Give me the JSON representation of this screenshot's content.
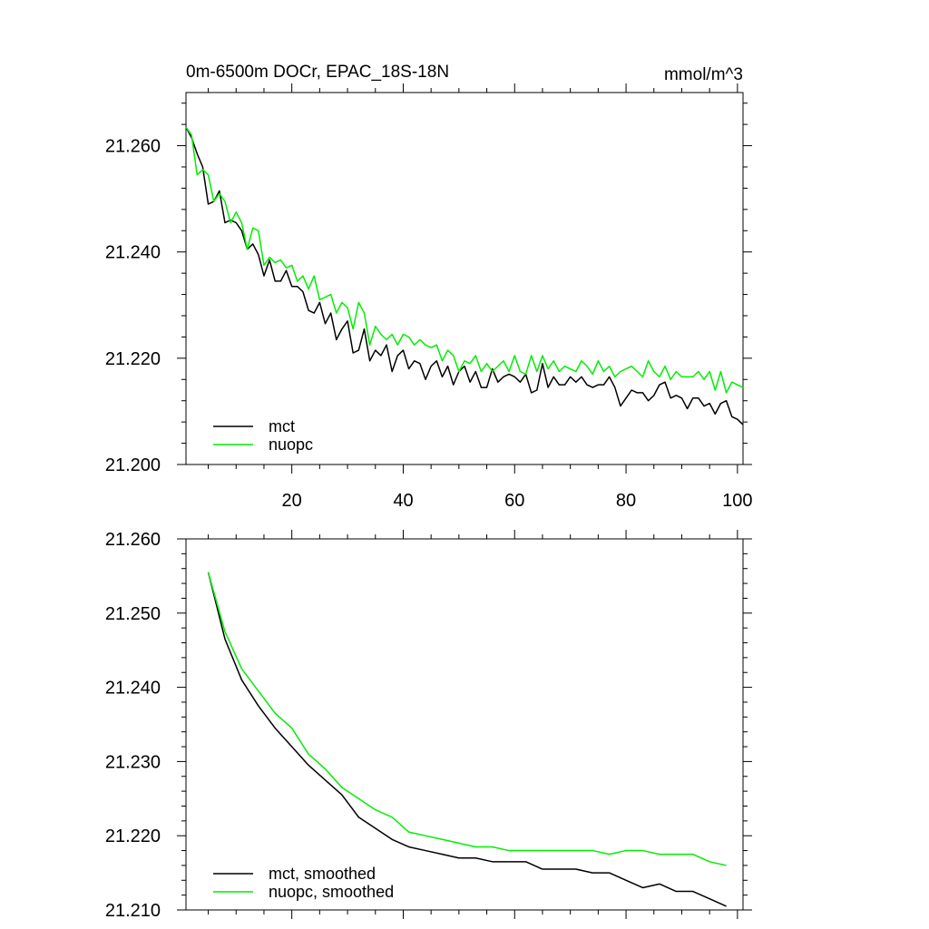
{
  "chart_data": [
    {
      "type": "line",
      "title": "0m-6500m DOCr, EPAC_18S-18N",
      "units": "mmol/m^3",
      "xlim": [
        1,
        101
      ],
      "ylim": [
        21.2,
        21.27
      ],
      "xticks": [
        20,
        40,
        60,
        80,
        100
      ],
      "yticks": [
        21.2,
        21.22,
        21.24,
        21.26
      ],
      "ytick_labels": [
        "21.200",
        "21.220",
        "21.240",
        "21.260"
      ],
      "xtick_labels": [
        "20",
        "40",
        "60",
        "80",
        "100"
      ],
      "legend_location": "bottom-left",
      "series": [
        {
          "name": "mct",
          "color": "#000000",
          "x": [
            1,
            2,
            3,
            4,
            5,
            6,
            7,
            8,
            9,
            10,
            11,
            12,
            13,
            14,
            15,
            16,
            17,
            18,
            19,
            20,
            21,
            22,
            23,
            24,
            25,
            26,
            27,
            28,
            29,
            30,
            31,
            32,
            33,
            34,
            35,
            36,
            37,
            38,
            39,
            40,
            41,
            42,
            43,
            44,
            45,
            46,
            47,
            48,
            49,
            50,
            51,
            52,
            53,
            54,
            55,
            56,
            57,
            58,
            59,
            60,
            61,
            62,
            63,
            64,
            65,
            66,
            67,
            68,
            69,
            70,
            71,
            72,
            73,
            74,
            75,
            76,
            77,
            78,
            79,
            80,
            81,
            82,
            83,
            84,
            85,
            86,
            87,
            88,
            89,
            90,
            91,
            92,
            93,
            94,
            95,
            96,
            97,
            98,
            99,
            100,
            101
          ],
          "values": [
            21.2635,
            21.2615,
            21.2585,
            21.256,
            21.249,
            21.2495,
            21.2515,
            21.2455,
            21.246,
            21.2455,
            21.244,
            21.2405,
            21.2415,
            21.2395,
            21.2355,
            21.2385,
            21.2345,
            21.2345,
            21.2365,
            21.2335,
            21.2335,
            21.2325,
            21.229,
            21.2285,
            21.2305,
            21.2265,
            21.2285,
            21.2235,
            21.2255,
            21.227,
            21.221,
            21.2215,
            21.2255,
            21.2195,
            21.2215,
            21.2205,
            21.2225,
            21.2175,
            21.2205,
            21.2215,
            21.218,
            21.2195,
            21.219,
            21.216,
            21.2185,
            21.2195,
            21.2165,
            21.2185,
            21.215,
            21.2175,
            21.2185,
            21.2155,
            21.2175,
            21.2145,
            21.2145,
            21.218,
            21.2155,
            21.2165,
            21.217,
            21.2165,
            21.2155,
            21.217,
            21.2135,
            21.214,
            21.219,
            21.2145,
            21.2165,
            21.215,
            21.215,
            21.2165,
            21.2155,
            21.2165,
            21.215,
            21.2145,
            21.215,
            21.215,
            21.2165,
            21.2145,
            21.211,
            21.2125,
            21.214,
            21.2135,
            21.2135,
            21.212,
            21.213,
            21.215,
            21.2155,
            21.2125,
            21.213,
            21.2125,
            21.2105,
            21.2125,
            21.2125,
            21.211,
            21.2115,
            21.2095,
            21.2115,
            21.212,
            21.209,
            21.2085,
            21.2075
          ]
        },
        {
          "name": "nuopc",
          "color": "#00ee00",
          "x": [
            1,
            2,
            3,
            4,
            5,
            6,
            7,
            8,
            9,
            10,
            11,
            12,
            13,
            14,
            15,
            16,
            17,
            18,
            19,
            20,
            21,
            22,
            23,
            24,
            25,
            26,
            27,
            28,
            29,
            30,
            31,
            32,
            33,
            34,
            35,
            36,
            37,
            38,
            39,
            40,
            41,
            42,
            43,
            44,
            45,
            46,
            47,
            48,
            49,
            50,
            51,
            52,
            53,
            54,
            55,
            56,
            57,
            58,
            59,
            60,
            61,
            62,
            63,
            64,
            65,
            66,
            67,
            68,
            69,
            70,
            71,
            72,
            73,
            74,
            75,
            76,
            77,
            78,
            79,
            80,
            81,
            82,
            83,
            84,
            85,
            86,
            87,
            88,
            89,
            90,
            91,
            92,
            93,
            94,
            95,
            96,
            97,
            98,
            99,
            100,
            101
          ],
          "values": [
            21.2635,
            21.262,
            21.2545,
            21.2555,
            21.2545,
            21.2495,
            21.251,
            21.2495,
            21.2455,
            21.2475,
            21.2455,
            21.2405,
            21.2445,
            21.244,
            21.2375,
            21.239,
            21.238,
            21.2385,
            21.237,
            21.2375,
            21.2345,
            21.2355,
            21.233,
            21.2355,
            21.231,
            21.2315,
            21.232,
            21.2285,
            21.2305,
            21.2295,
            21.2255,
            21.2305,
            21.2285,
            21.2225,
            21.226,
            21.2245,
            21.2235,
            21.2245,
            21.2225,
            21.2245,
            21.224,
            21.2225,
            21.2235,
            21.2225,
            21.222,
            21.2225,
            21.2195,
            21.2215,
            21.2205,
            21.2175,
            21.2195,
            21.219,
            21.2205,
            21.2175,
            21.219,
            21.2175,
            21.2185,
            21.2195,
            21.2175,
            21.2205,
            21.2175,
            21.217,
            21.2205,
            21.2175,
            21.2205,
            21.218,
            21.2195,
            21.2175,
            21.2185,
            21.218,
            21.2175,
            21.2195,
            21.2185,
            21.217,
            21.2195,
            21.2175,
            21.2185,
            21.2165,
            21.2175,
            21.218,
            21.2185,
            21.2175,
            21.2165,
            21.2195,
            21.2175,
            21.2165,
            21.2185,
            21.216,
            21.2175,
            21.2165,
            21.2165,
            21.2165,
            21.2175,
            21.216,
            21.2175,
            21.214,
            21.2175,
            21.2135,
            21.2155,
            21.215,
            21.2145
          ]
        }
      ]
    },
    {
      "type": "line",
      "title": "",
      "xlim": [
        1,
        101
      ],
      "ylim": [
        21.21,
        21.26
      ],
      "xticks": [
        20,
        40,
        60,
        80,
        100
      ],
      "yticks": [
        21.21,
        21.22,
        21.23,
        21.24,
        21.25,
        21.26
      ],
      "ytick_labels": [
        "21.210",
        "21.220",
        "21.230",
        "21.240",
        "21.250",
        "21.260"
      ],
      "legend_location": "bottom-left",
      "series": [
        {
          "name": "mct, smoothed",
          "color": "#000000",
          "x": [
            5,
            8,
            11,
            14,
            17,
            20,
            23,
            26,
            29,
            32,
            35,
            38,
            41,
            44,
            47,
            50,
            53,
            56,
            59,
            62,
            65,
            68,
            71,
            74,
            77,
            80,
            83,
            86,
            89,
            92,
            95,
            98
          ],
          "values": [
            21.2555,
            21.2465,
            21.241,
            21.2375,
            21.2345,
            21.232,
            21.2295,
            21.2275,
            21.2255,
            21.2225,
            21.221,
            21.2195,
            21.2185,
            21.218,
            21.2175,
            21.217,
            21.217,
            21.2165,
            21.2165,
            21.2165,
            21.2155,
            21.2155,
            21.2155,
            21.215,
            21.215,
            21.214,
            21.213,
            21.2135,
            21.2125,
            21.2125,
            21.2115,
            21.2105
          ]
        },
        {
          "name": "nuopc, smoothed",
          "color": "#00ee00",
          "x": [
            5,
            8,
            11,
            14,
            17,
            20,
            23,
            26,
            29,
            32,
            35,
            38,
            41,
            44,
            47,
            50,
            53,
            56,
            59,
            62,
            65,
            68,
            71,
            74,
            77,
            80,
            83,
            86,
            89,
            92,
            95,
            98
          ],
          "values": [
            21.2555,
            21.2475,
            21.2425,
            21.2395,
            21.2365,
            21.2345,
            21.231,
            21.229,
            21.2265,
            21.225,
            21.2235,
            21.2225,
            21.2205,
            21.22,
            21.2195,
            21.219,
            21.2185,
            21.2185,
            21.218,
            21.218,
            21.218,
            21.218,
            21.218,
            21.218,
            21.2175,
            21.218,
            21.218,
            21.2175,
            21.2175,
            21.2175,
            21.2165,
            21.216
          ]
        }
      ]
    }
  ]
}
